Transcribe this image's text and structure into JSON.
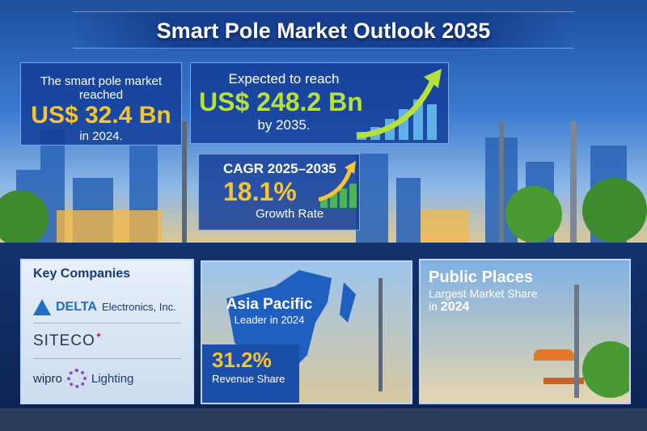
{
  "title": "Smart Pole Market Outlook 2035",
  "stat_2024": {
    "line1": "The smart pole market reached",
    "value": "US$ 32.4 Bn",
    "line2": "in 2024."
  },
  "stat_2035": {
    "line1": "Expected to reach",
    "value": "US$ 248.2 Bn",
    "line2": "by 2035."
  },
  "cagr": {
    "label": "CAGR 2025–2035",
    "value": "18.1%",
    "sub": "Growth Rate"
  },
  "key_companies": {
    "heading": "Key Companies",
    "items": [
      {
        "logo": "DELTA",
        "name": "Electronics, Inc."
      },
      {
        "logo": "SITECO",
        "name": ""
      },
      {
        "logo": "wipro",
        "name": "Lighting"
      }
    ]
  },
  "region": {
    "name": "Asia Pacific",
    "sub": "Leader in 2024",
    "value": "31.2%",
    "value_label": "Revenue Share"
  },
  "segment": {
    "name": "Public Places",
    "sub": "Largest Market Share",
    "year_prefix": "in",
    "year": "2024"
  },
  "colors": {
    "accent_yellow": "#f5c431",
    "accent_green": "#b8e03a",
    "navy": "#0d2a5c"
  }
}
